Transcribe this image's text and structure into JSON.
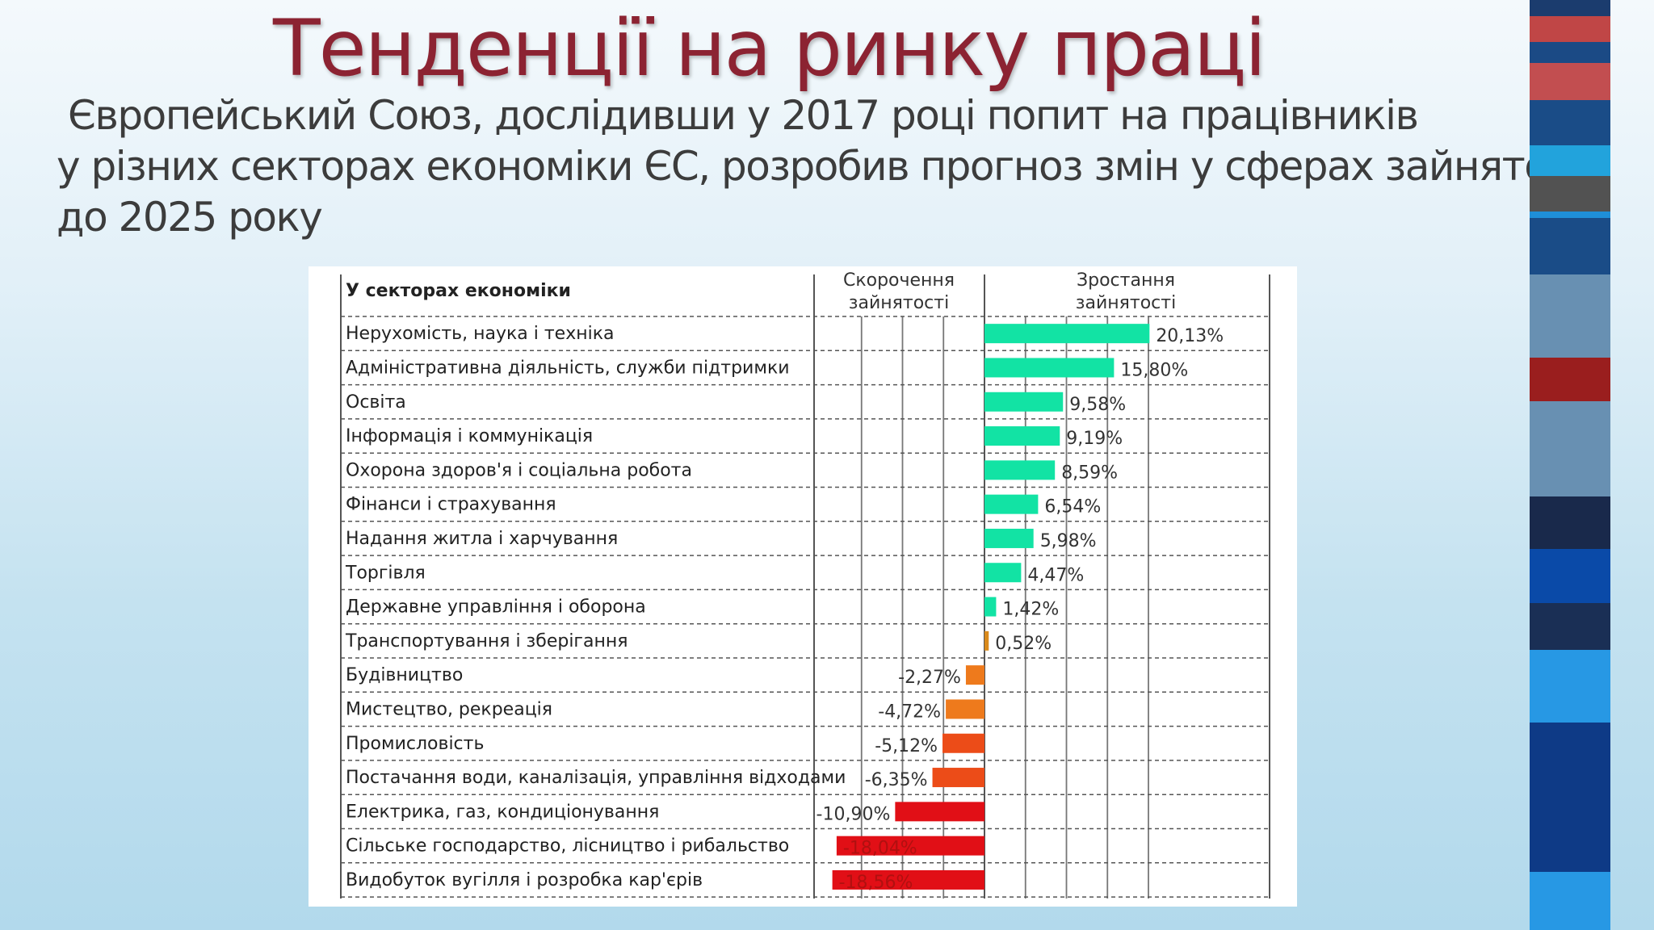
{
  "slide": {
    "title": "Тенденції на ринку праці",
    "subtitle_lines": [
      "Європейський Союз, дослідивши у 2017 році попит на працівників",
      "у різних секторах економіки ЄС, розробив прогноз змін у сферах зайнятості",
      "до 2025 року"
    ]
  },
  "decor": {
    "stripes": [
      "#1b3c6e",
      "#c04646",
      "#1b4a85",
      "#c24e50",
      "#1a4c87",
      "#22a3dc",
      "#525252",
      "#1f8fd8",
      "#1a4c87",
      "#6890b2",
      "#9a1e1e",
      "#6890b2",
      "#19294b",
      "#0a4aa8",
      "#1a2f55",
      "#2798e4",
      "#0e3a86",
      "#2798e4"
    ]
  },
  "chart_data": {
    "type": "bar",
    "orientation": "horizontal",
    "header": {
      "categories_label": "У секторах економіки",
      "negative_label": [
        "Скорочення",
        "зайнятості"
      ],
      "positive_label": [
        "Зростання",
        "зайнятості"
      ]
    },
    "xlim": [
      -20,
      25
    ],
    "grid": "dashed",
    "colors": {
      "positive": "#12e3a4",
      "small_positive": "#d98a1c",
      "orange": "#ee7a1c",
      "orange_red": "#ec4c18",
      "red": "#e10f16"
    },
    "categories": [
      "Нерухомість, наука і техніка",
      "Адміністративна діяльність, служби підтримки",
      "Освіта",
      "Інформація і коммунікація",
      "Охорона здоров'я і соціальна робота",
      "Фінанси і страхування",
      "Надання житла і харчування",
      "Торгівля",
      "Державне управління і оборона",
      "Транспортування і зберігання",
      "Будівництво",
      "Мистецтво, рекреація",
      "Промисловість",
      "Постачання води, каналізація, управління відходами",
      "Електрика, газ, кондиціонування",
      "Сільське господарство, лісництво і рибальство",
      "Видобуток вугілля і розробка кар'єрів"
    ],
    "values": [
      20.13,
      15.8,
      9.58,
      9.19,
      8.59,
      6.54,
      5.98,
      4.47,
      1.42,
      0.52,
      -2.27,
      -4.72,
      -5.12,
      -6.35,
      -10.9,
      -18.04,
      -18.56
    ],
    "labels": [
      "20,13%",
      "15,80%",
      "9,58%",
      "9,19%",
      "8,59%",
      "6,54%",
      "5,98%",
      "4,47%",
      "1,42%",
      "0,52%",
      "-2,27%",
      "-4,72%",
      "-5,12%",
      "-6,35%",
      "-10,90%",
      "-18,04%",
      "-18,56%"
    ]
  }
}
